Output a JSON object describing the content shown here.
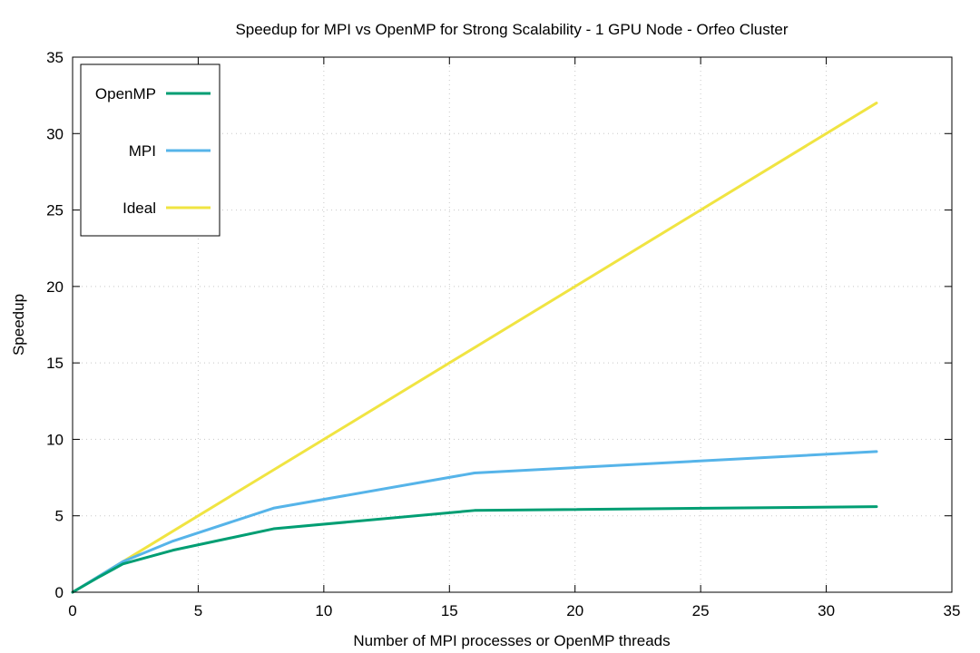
{
  "chart_data": {
    "type": "line",
    "title": "Speedup for MPI vs OpenMP for Strong Scalability - 1 GPU Node - Orfeo Cluster",
    "xlabel": "Number of MPI processes or OpenMP threads",
    "ylabel": "Speedup",
    "xlim": [
      0,
      35
    ],
    "ylim": [
      0,
      35
    ],
    "xticks": [
      0,
      5,
      10,
      15,
      20,
      25,
      30,
      35
    ],
    "yticks": [
      0,
      5,
      10,
      15,
      20,
      25,
      30,
      35
    ],
    "grid": true,
    "legend_position": "top-left",
    "series": [
      {
        "name": "OpenMP",
        "color": "#009e73",
        "points": [
          [
            0,
            0
          ],
          [
            1,
            0.95
          ],
          [
            2,
            1.85
          ],
          [
            4,
            2.75
          ],
          [
            8,
            4.15
          ],
          [
            16,
            5.35
          ],
          [
            32,
            5.6
          ]
        ]
      },
      {
        "name": "MPI",
        "color": "#56b4e9",
        "points": [
          [
            0,
            0
          ],
          [
            1,
            1.0
          ],
          [
            2,
            2.0
          ],
          [
            4,
            3.35
          ],
          [
            8,
            5.5
          ],
          [
            16,
            7.8
          ],
          [
            32,
            9.2
          ]
        ]
      },
      {
        "name": "Ideal",
        "color": "#f0e442",
        "points": [
          [
            0,
            0
          ],
          [
            1,
            1
          ],
          [
            2,
            2
          ],
          [
            4,
            4
          ],
          [
            8,
            8
          ],
          [
            16,
            16
          ],
          [
            32,
            32
          ]
        ]
      }
    ]
  }
}
